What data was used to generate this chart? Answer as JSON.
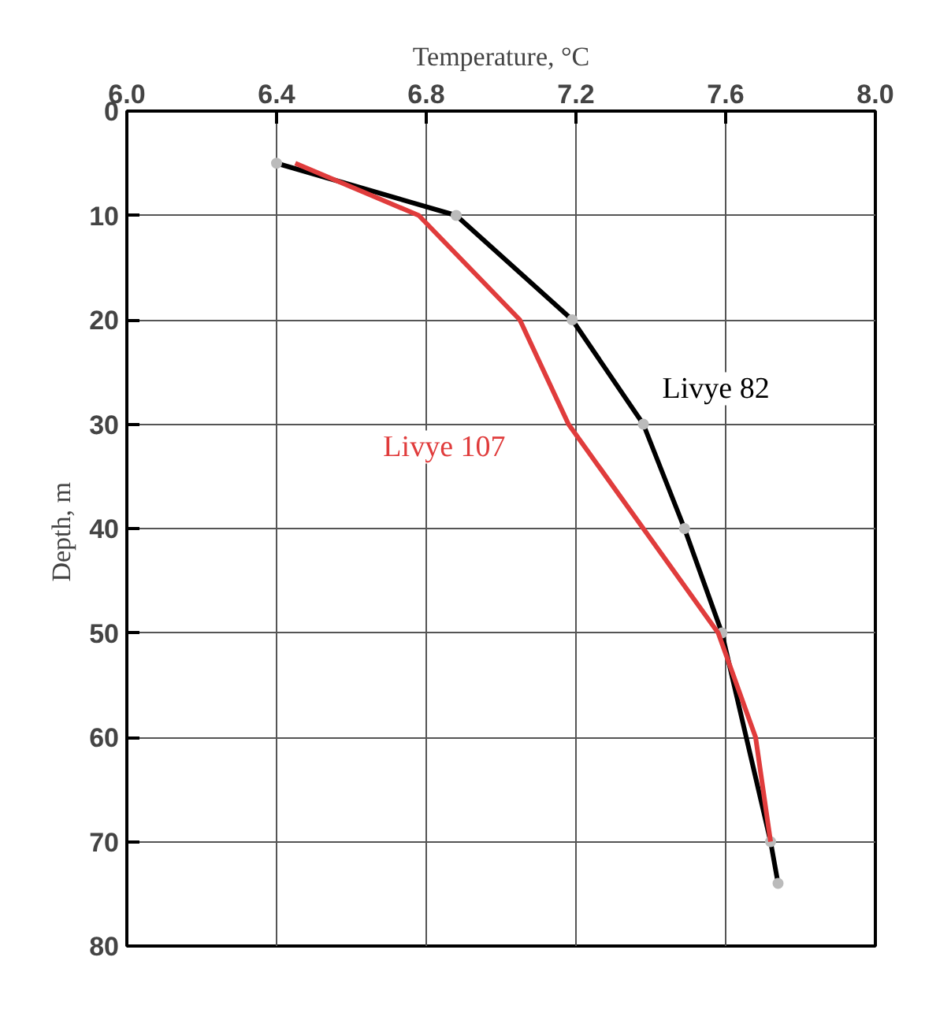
{
  "chart_data": {
    "type": "line",
    "xlabel": "Temperature, °C",
    "ylabel": "Depth,  m",
    "xlim": [
      6.0,
      8.0
    ],
    "xticks": [
      {
        "value": 6,
        "label": "6.0"
      },
      6.4,
      6.8,
      7.2,
      7.6,
      {
        "value": 8,
        "label": "8.0"
      }
    ],
    "ylim": [
      80,
      0
    ],
    "yticks": [
      0,
      10,
      20,
      30,
      40,
      50,
      60,
      70,
      80
    ],
    "grid": true,
    "series": [
      {
        "name": "Livye 82",
        "color": "#000000",
        "marker": "circle",
        "x": [
          6.4,
          6.88,
          7.19,
          7.38,
          7.49,
          7.59,
          7.72,
          7.74
        ],
        "values": [
          5,
          10,
          20,
          30,
          40,
          50,
          70,
          74
        ]
      },
      {
        "name": "Livye 107",
        "color": "#e03c3c",
        "marker": "none",
        "x": [
          6.45,
          6.78,
          7.05,
          7.18,
          7.38,
          7.58,
          7.68,
          7.72
        ],
        "values": [
          5,
          10,
          20,
          30,
          40,
          50,
          60,
          70
        ]
      }
    ]
  }
}
